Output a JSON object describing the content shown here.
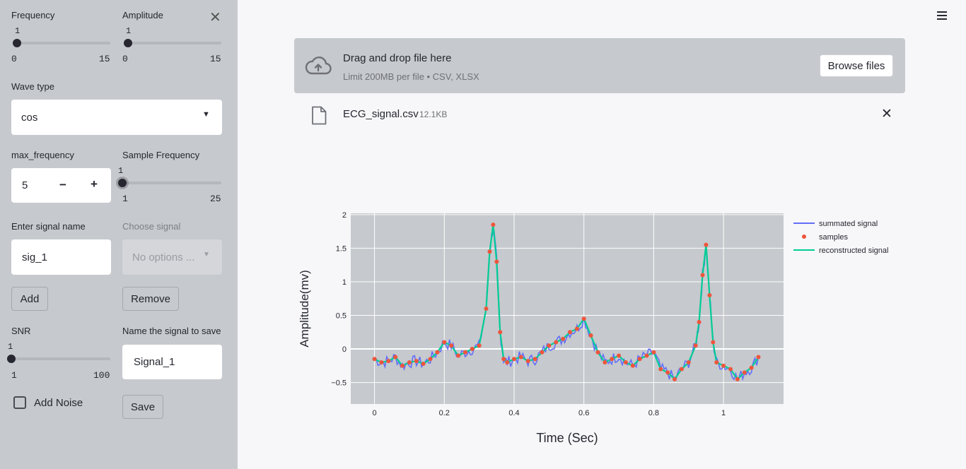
{
  "sidebar": {
    "close_icon": "✕",
    "frequency": {
      "label": "Frequency",
      "value": "1",
      "min": "0",
      "max": "15"
    },
    "amplitude": {
      "label": "Amplitude",
      "value": "1",
      "min": "0",
      "max": "15"
    },
    "wave_type": {
      "label": "Wave type",
      "selected": "cos"
    },
    "max_frequency": {
      "label": "max_frequency",
      "value": "5",
      "minus": "−",
      "plus": "+"
    },
    "sample_frequency": {
      "label": "Sample Frequency",
      "value": "1",
      "min": "1",
      "max": "25"
    },
    "signal_name": {
      "label": "Enter signal name",
      "value": "sig_1"
    },
    "choose_signal": {
      "label": "Choose signal",
      "placeholder": "No options ..."
    },
    "add_label": "Add",
    "remove_label": "Remove",
    "snr": {
      "label": "SNR",
      "value": "1",
      "min": "1",
      "max": "100"
    },
    "save_name": {
      "label": "Name the signal to save",
      "value": "Signal_1"
    },
    "add_noise_label": "Add Noise",
    "save_label": "Save"
  },
  "main": {
    "menu_icon": "hamburger-menu-icon",
    "uploader": {
      "title": "Drag and drop file here",
      "subtitle": "Limit 200MB per file • CSV, XLSX",
      "browse_label": "Browse files",
      "icon": "cloud-upload-icon"
    },
    "file": {
      "name": "ECG_signal.csv",
      "size": "12.1KB",
      "icon": "file-icon",
      "remove_icon": "✕"
    }
  },
  "colors": {
    "summated": "#636efa",
    "samples": "#ef553b",
    "reconstructed": "#00cc96",
    "plot_bg": "#c6c9cd"
  },
  "chart_data": {
    "type": "line",
    "xlabel": "Time (Sec)",
    "ylabel": "Amplitude(mv)",
    "xlim": [
      -0.068,
      1.172
    ],
    "ylim": [
      -0.82,
      2.02
    ],
    "x_ticks": [
      0,
      0.2,
      0.4,
      0.6,
      0.8,
      1
    ],
    "x_tick_labels": [
      "0",
      "0.2",
      "0.4",
      "0.6",
      "0.8",
      "1"
    ],
    "y_ticks": [
      -0.5,
      0,
      0.5,
      1,
      1.5,
      2
    ],
    "y_tick_labels": [
      "−0.5",
      "0",
      "0.5",
      "1",
      "1.5",
      "2"
    ],
    "grid": true,
    "legend_position": "right",
    "series": [
      {
        "name": "summated signal",
        "style": "line"
      },
      {
        "name": "samples",
        "style": "markers"
      },
      {
        "name": "reconstructed signal",
        "style": "line"
      }
    ],
    "x": [
      0,
      0.02,
      0.04,
      0.06,
      0.08,
      0.1,
      0.12,
      0.14,
      0.16,
      0.18,
      0.2,
      0.22,
      0.24,
      0.26,
      0.28,
      0.3,
      0.32,
      0.33,
      0.34,
      0.35,
      0.36,
      0.37,
      0.38,
      0.4,
      0.42,
      0.44,
      0.46,
      0.48,
      0.5,
      0.52,
      0.54,
      0.56,
      0.58,
      0.6,
      0.62,
      0.64,
      0.66,
      0.68,
      0.7,
      0.72,
      0.74,
      0.76,
      0.78,
      0.8,
      0.82,
      0.84,
      0.86,
      0.88,
      0.9,
      0.92,
      0.93,
      0.94,
      0.95,
      0.96,
      0.97,
      0.98,
      1.0,
      1.02,
      1.04,
      1.06,
      1.08,
      1.1
    ],
    "y": [
      -0.15,
      -0.2,
      -0.18,
      -0.12,
      -0.25,
      -0.2,
      -0.18,
      -0.22,
      -0.15,
      -0.05,
      0.1,
      0.05,
      -0.1,
      -0.05,
      0.0,
      0.05,
      0.6,
      1.45,
      1.85,
      1.3,
      0.25,
      -0.15,
      -0.2,
      -0.15,
      -0.12,
      -0.18,
      -0.15,
      -0.05,
      0.05,
      0.1,
      0.15,
      0.25,
      0.3,
      0.45,
      0.2,
      -0.05,
      -0.2,
      -0.15,
      -0.1,
      -0.2,
      -0.25,
      -0.15,
      -0.1,
      -0.05,
      -0.3,
      -0.35,
      -0.45,
      -0.3,
      -0.2,
      0.05,
      0.4,
      1.1,
      1.55,
      0.8,
      0.1,
      -0.2,
      -0.25,
      -0.3,
      -0.45,
      -0.35,
      -0.28,
      -0.12
    ]
  }
}
